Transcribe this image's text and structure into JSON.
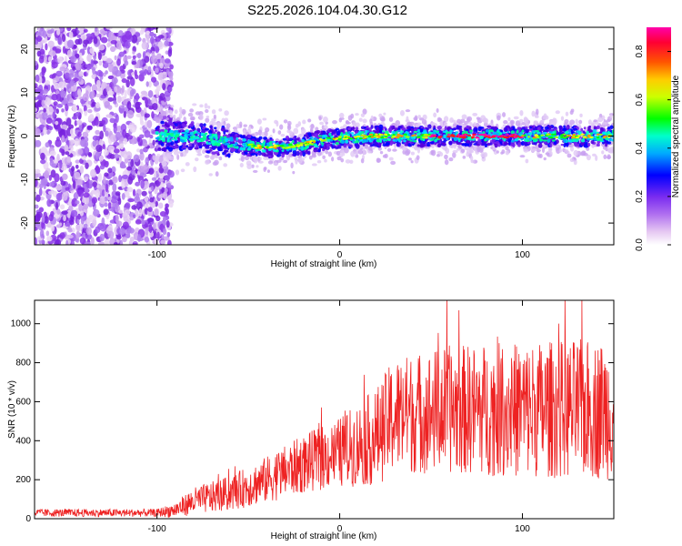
{
  "title": "S225.2026.104.04.30.G12",
  "chart_data": [
    {
      "type": "heatmap",
      "title": "",
      "xlabel": "Height of straight line (km)",
      "ylabel": "Frequency (Hz)",
      "xlim": [
        -167,
        150
      ],
      "ylim": [
        -25,
        25
      ],
      "xticks": [
        -100,
        0,
        100
      ],
      "yticks": [
        -20,
        -10,
        0,
        10,
        20
      ],
      "colorbar": {
        "label": "Normalized spectral amplitude",
        "range": [
          0,
          0.9
        ],
        "ticks": [
          0.0,
          0.2,
          0.4,
          0.6,
          0.8
        ],
        "colormap": [
          "#ffffff",
          "#e8c8f0",
          "#c080f0",
          "#8a2be2",
          "#0000ff",
          "#00bfff",
          "#00ffaa",
          "#00ff00",
          "#ffff00",
          "#ff8000",
          "#ff0000",
          "#ff00aa"
        ]
      },
      "ridge": {
        "x": [
          -100,
          -80,
          -60,
          -45,
          -30,
          -20,
          -10,
          0,
          20,
          50,
          80,
          110,
          150
        ],
        "y": [
          0,
          0,
          -1.5,
          -2.5,
          -2.5,
          -2,
          -1,
          -0.5,
          0,
          0,
          0,
          0,
          0
        ],
        "peak_x": 75
      }
    },
    {
      "type": "line",
      "title": "",
      "xlabel": "Height of straight line (km)",
      "ylabel": "SNR (10 * v/v)",
      "xlim": [
        -167,
        150
      ],
      "ylim": [
        0,
        1120
      ],
      "xticks": [
        -100,
        0,
        100
      ],
      "yticks": [
        0,
        200,
        400,
        600,
        800,
        1000
      ],
      "color": "#ee2222",
      "envelope": {
        "x": [
          -167,
          -100,
          -90,
          -80,
          -60,
          -40,
          -20,
          0,
          20,
          30,
          60,
          100,
          130,
          150
        ],
        "mean": [
          30,
          30,
          45,
          90,
          130,
          200,
          280,
          340,
          420,
          530,
          560,
          560,
          560,
          560
        ],
        "spread": [
          20,
          20,
          40,
          70,
          90,
          120,
          150,
          180,
          250,
          300,
          330,
          350,
          360,
          360
        ]
      }
    }
  ]
}
